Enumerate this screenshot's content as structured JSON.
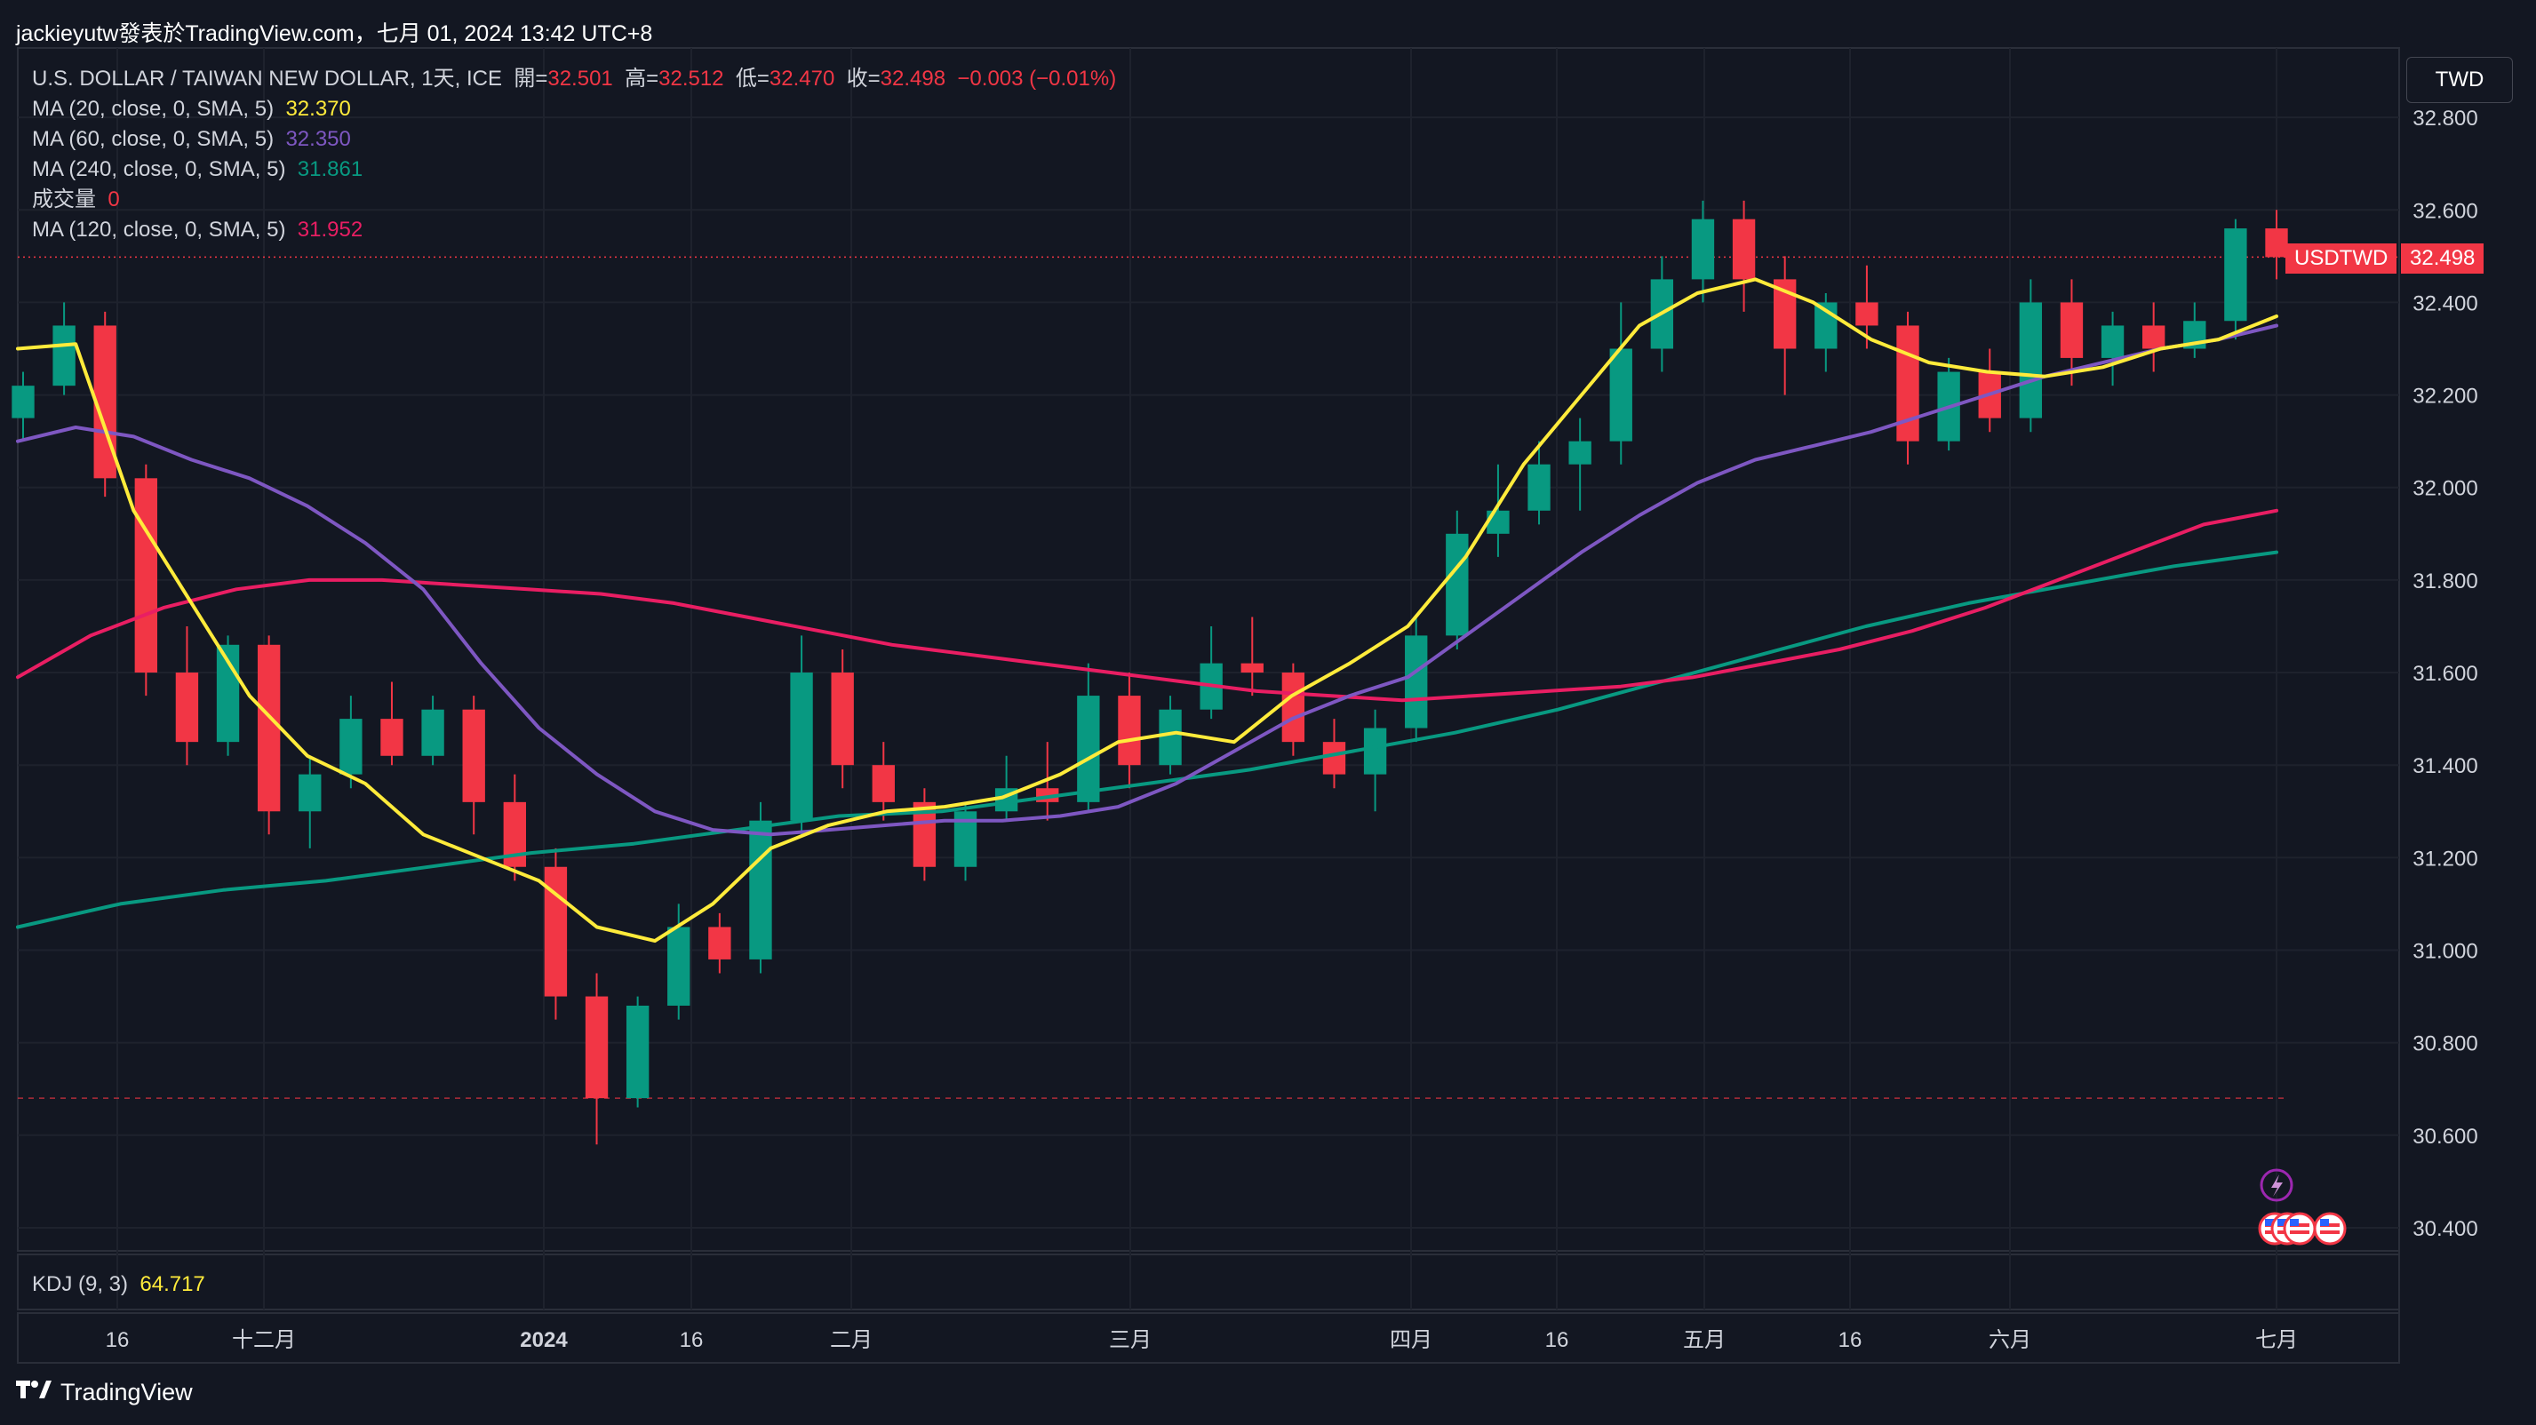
{
  "header": {
    "publisher": "jackieyutw發表於TradingView.com，七月 01, 2024 13:42 UTC+8"
  },
  "legend": {
    "symbol": "U.S. DOLLAR / TAIWAN NEW DOLLAR, 1天, ICE",
    "open_label": "開=",
    "open": "32.501",
    "high_label": "高=",
    "high": "32.512",
    "low_label": "低=",
    "low": "32.470",
    "close_label": "收=",
    "close": "32.498",
    "change": "−0.003 (−0.01%)",
    "ma20": {
      "label": "MA (20, close, 0, SMA, 5)",
      "value": "32.370",
      "color": "#ffeb3b"
    },
    "ma60": {
      "label": "MA (60, close, 0, SMA, 5)",
      "value": "32.350",
      "color": "#7e57c2"
    },
    "ma240": {
      "label": "MA (240, close, 0, SMA, 5)",
      "value": "31.861",
      "color": "#089981"
    },
    "volume": {
      "label": "成交量",
      "value": "0",
      "color": "#f23645"
    },
    "ma120": {
      "label": "MA (120, close, 0, SMA, 5)",
      "value": "31.952",
      "color": "#e91e63"
    }
  },
  "kdj": {
    "label": "KDJ (9, 3)",
    "value": "64.717",
    "color": "#ffeb3b"
  },
  "currency_button": "TWD",
  "price_tag": {
    "symbol": "USDTWD",
    "value": "32.498"
  },
  "brand": "TradingView",
  "icons": {
    "logo": "tradingview-logo-icon",
    "flash": "lightning-icon",
    "flag": "us-flag-icon"
  },
  "colors": {
    "up": "#089981",
    "down": "#f23645",
    "background": "#131722",
    "grid": "#1e222d"
  },
  "chart_data": {
    "type": "candlestick",
    "ylim": [
      30.35,
      32.95
    ],
    "y_ticks": [
      "32.800",
      "32.600",
      "32.400",
      "32.200",
      "32.000",
      "31.800",
      "31.600",
      "31.400",
      "31.200",
      "31.000",
      "30.800",
      "30.600",
      "30.400"
    ],
    "x_ticks": [
      "16",
      "十二月",
      "2024",
      "16",
      "二月",
      "三月",
      "四月",
      "16",
      "五月",
      "16",
      "六月",
      "七月"
    ],
    "last_close": 32.498,
    "lowest_low_level": 30.68,
    "ma_endpoints": {
      "ma20": 32.37,
      "ma60": 32.35,
      "ma120": 31.952,
      "ma240": 31.861
    },
    "series": [
      {
        "name": "MA (20, close, 0, SMA, 5)",
        "color": "#ffeb3b",
        "values": [
          32.3,
          32.31,
          31.95,
          31.75,
          31.55,
          31.42,
          31.36,
          31.25,
          31.2,
          31.15,
          31.05,
          31.02,
          31.1,
          31.22,
          31.27,
          31.3,
          31.31,
          31.33,
          31.38,
          31.45,
          31.47,
          31.45,
          31.55,
          31.62,
          31.7,
          31.85,
          32.05,
          32.2,
          32.35,
          32.42,
          32.45,
          32.4,
          32.32,
          32.27,
          32.25,
          32.24,
          32.26,
          32.3,
          32.32,
          32.37
        ]
      },
      {
        "name": "MA (60, close, 0, SMA, 5)",
        "color": "#7e57c2",
        "values": [
          32.1,
          32.13,
          32.11,
          32.06,
          32.02,
          31.96,
          31.88,
          31.78,
          31.62,
          31.48,
          31.38,
          31.3,
          31.26,
          31.25,
          31.26,
          31.27,
          31.28,
          31.28,
          31.29,
          31.31,
          31.36,
          31.43,
          31.5,
          31.55,
          31.59,
          31.68,
          31.77,
          31.86,
          31.94,
          32.01,
          32.06,
          32.09,
          32.12,
          32.16,
          32.2,
          32.24,
          32.27,
          32.3,
          32.32,
          32.35
        ]
      },
      {
        "name": "MA (120, close, 0, SMA, 5)",
        "color": "#e91e63",
        "values": [
          31.59,
          31.68,
          31.74,
          31.78,
          31.8,
          31.8,
          31.79,
          31.78,
          31.77,
          31.75,
          31.72,
          31.69,
          31.66,
          31.64,
          31.62,
          31.6,
          31.58,
          31.56,
          31.55,
          31.54,
          31.55,
          31.56,
          31.57,
          31.59,
          31.62,
          31.65,
          31.69,
          31.74,
          31.8,
          31.86,
          31.92,
          31.95
        ]
      },
      {
        "name": "MA (240, close, 0, SMA, 5)",
        "color": "#089981",
        "values": [
          31.05,
          31.1,
          31.13,
          31.15,
          31.18,
          31.21,
          31.23,
          31.26,
          31.29,
          31.3,
          31.33,
          31.36,
          31.39,
          31.43,
          31.47,
          31.52,
          31.58,
          31.64,
          31.7,
          31.75,
          31.79,
          31.83,
          31.86
        ]
      },
      {
        "name": "candles",
        "note": "[open, high, low, close]",
        "values": [
          [
            32.15,
            32.25,
            32.1,
            32.22
          ],
          [
            32.22,
            32.4,
            32.2,
            32.35
          ],
          [
            32.35,
            32.38,
            31.98,
            32.02
          ],
          [
            32.02,
            32.05,
            31.55,
            31.6
          ],
          [
            31.6,
            31.7,
            31.4,
            31.45
          ],
          [
            31.45,
            31.68,
            31.42,
            31.66
          ],
          [
            31.66,
            31.68,
            31.25,
            31.3
          ],
          [
            31.3,
            31.42,
            31.22,
            31.38
          ],
          [
            31.38,
            31.55,
            31.35,
            31.5
          ],
          [
            31.5,
            31.58,
            31.4,
            31.42
          ],
          [
            31.42,
            31.55,
            31.4,
            31.52
          ],
          [
            31.52,
            31.55,
            31.25,
            31.32
          ],
          [
            31.32,
            31.38,
            31.15,
            31.18
          ],
          [
            31.18,
            31.22,
            30.85,
            30.9
          ],
          [
            30.9,
            30.95,
            30.58,
            30.68
          ],
          [
            30.68,
            30.9,
            30.66,
            30.88
          ],
          [
            30.88,
            31.1,
            30.85,
            31.05
          ],
          [
            31.05,
            31.08,
            30.95,
            30.98
          ],
          [
            30.98,
            31.32,
            30.95,
            31.28
          ],
          [
            31.28,
            31.68,
            31.25,
            31.6
          ],
          [
            31.6,
            31.65,
            31.35,
            31.4
          ],
          [
            31.4,
            31.45,
            31.28,
            31.32
          ],
          [
            31.32,
            31.35,
            31.15,
            31.18
          ],
          [
            31.18,
            31.32,
            31.15,
            31.3
          ],
          [
            31.3,
            31.42,
            31.28,
            31.35
          ],
          [
            31.35,
            31.45,
            31.28,
            31.32
          ],
          [
            31.32,
            31.62,
            31.3,
            31.55
          ],
          [
            31.55,
            31.6,
            31.35,
            31.4
          ],
          [
            31.4,
            31.55,
            31.38,
            31.52
          ],
          [
            31.52,
            31.7,
            31.5,
            31.62
          ],
          [
            31.62,
            31.72,
            31.55,
            31.6
          ],
          [
            31.6,
            31.62,
            31.42,
            31.45
          ],
          [
            31.45,
            31.5,
            31.35,
            31.38
          ],
          [
            31.38,
            31.52,
            31.3,
            31.48
          ],
          [
            31.48,
            31.72,
            31.45,
            31.68
          ],
          [
            31.68,
            31.95,
            31.65,
            31.9
          ],
          [
            31.9,
            32.05,
            31.85,
            31.95
          ],
          [
            31.95,
            32.1,
            31.92,
            32.05
          ],
          [
            32.05,
            32.15,
            31.95,
            32.1
          ],
          [
            32.1,
            32.4,
            32.05,
            32.3
          ],
          [
            32.3,
            32.5,
            32.25,
            32.45
          ],
          [
            32.45,
            32.62,
            32.4,
            32.58
          ],
          [
            32.58,
            32.62,
            32.38,
            32.45
          ],
          [
            32.45,
            32.5,
            32.2,
            32.3
          ],
          [
            32.3,
            32.42,
            32.25,
            32.4
          ],
          [
            32.4,
            32.48,
            32.3,
            32.35
          ],
          [
            32.35,
            32.38,
            32.05,
            32.1
          ],
          [
            32.1,
            32.28,
            32.08,
            32.25
          ],
          [
            32.25,
            32.3,
            32.12,
            32.15
          ],
          [
            32.15,
            32.45,
            32.12,
            32.4
          ],
          [
            32.4,
            32.45,
            32.22,
            32.28
          ],
          [
            32.28,
            32.38,
            32.22,
            32.35
          ],
          [
            32.35,
            32.4,
            32.25,
            32.3
          ],
          [
            32.3,
            32.4,
            32.28,
            32.36
          ],
          [
            32.36,
            32.58,
            32.32,
            32.56
          ],
          [
            32.56,
            32.6,
            32.45,
            32.498
          ]
        ]
      }
    ]
  }
}
